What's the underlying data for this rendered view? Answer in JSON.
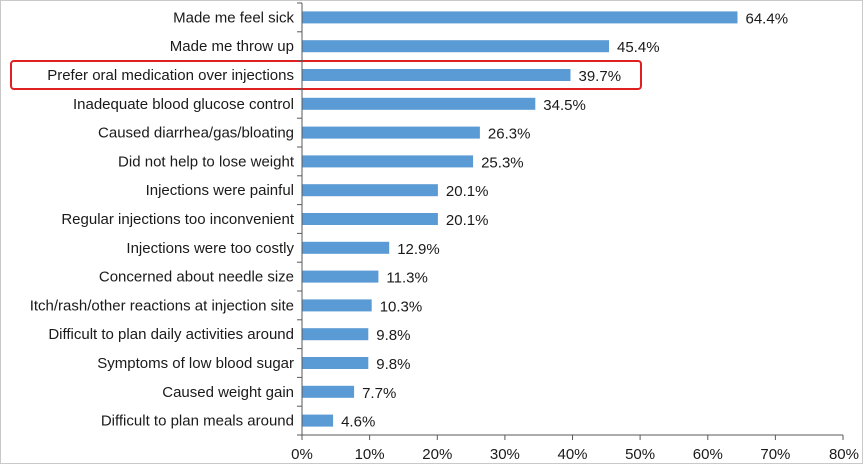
{
  "chart_data": {
    "type": "bar",
    "orientation": "horizontal",
    "categories": [
      "Made me feel sick",
      "Made me throw up",
      "Prefer oral medication over injections",
      "Inadequate blood glucose control",
      "Caused diarrhea/gas/bloating",
      "Did not help to lose weight",
      "Injections were painful",
      "Regular injections too inconvenient",
      "Injections were too costly",
      "Concerned about needle size",
      "Itch/rash/other reactions at injection site",
      "Difficult to plan daily activities around",
      "Symptoms of low blood sugar",
      "Caused weight gain",
      "Difficult to plan meals around"
    ],
    "values": [
      64.4,
      45.4,
      39.7,
      34.5,
      26.3,
      25.3,
      20.1,
      20.1,
      12.9,
      11.3,
      10.3,
      9.8,
      9.8,
      7.7,
      4.6
    ],
    "value_labels": [
      "64.4%",
      "45.4%",
      "39.7%",
      "34.5%",
      "26.3%",
      "25.3%",
      "20.1%",
      "20.1%",
      "12.9%",
      "11.3%",
      "10.3%",
      "9.8%",
      "9.8%",
      "7.7%",
      "4.6%"
    ],
    "xlim": [
      0,
      80
    ],
    "x_ticks": [
      0,
      10,
      20,
      30,
      40,
      50,
      60,
      70,
      80
    ],
    "x_tick_labels": [
      "0%",
      "10%",
      "20%",
      "30%",
      "40%",
      "50%",
      "60%",
      "70%",
      "80%"
    ],
    "highlighted_category": "Prefer oral medication over injections",
    "bar_color": "#5b9bd5",
    "highlight_color": "#e02020",
    "grid": false,
    "legend": "none"
  }
}
